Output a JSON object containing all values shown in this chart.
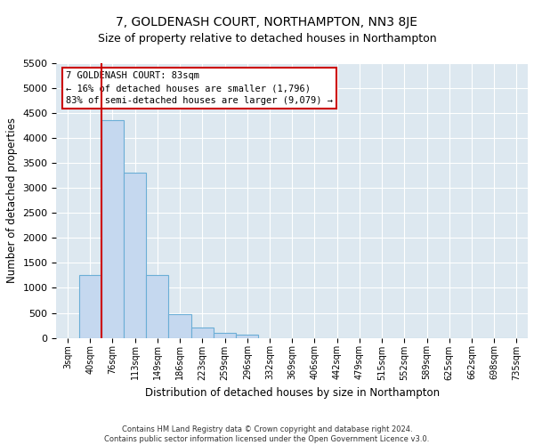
{
  "title": "7, GOLDENASH COURT, NORTHAMPTON, NN3 8JE",
  "subtitle": "Size of property relative to detached houses in Northampton",
  "xlabel": "Distribution of detached houses by size in Northampton",
  "ylabel": "Number of detached properties",
  "footer_line1": "Contains HM Land Registry data © Crown copyright and database right 2024.",
  "footer_line2": "Contains public sector information licensed under the Open Government Licence v3.0.",
  "categories": [
    "3sqm",
    "40sqm",
    "76sqm",
    "113sqm",
    "149sqm",
    "186sqm",
    "223sqm",
    "259sqm",
    "296sqm",
    "332sqm",
    "369sqm",
    "406sqm",
    "442sqm",
    "479sqm",
    "515sqm",
    "552sqm",
    "589sqm",
    "625sqm",
    "662sqm",
    "698sqm",
    "735sqm"
  ],
  "values": [
    0,
    1250,
    4350,
    3300,
    1250,
    480,
    200,
    100,
    70,
    0,
    0,
    0,
    0,
    0,
    0,
    0,
    0,
    0,
    0,
    0,
    0
  ],
  "bar_color": "#c5d8ef",
  "bar_edge_color": "#6baed6",
  "vline_color": "#cc0000",
  "ylim": [
    0,
    5500
  ],
  "yticks": [
    0,
    500,
    1000,
    1500,
    2000,
    2500,
    3000,
    3500,
    4000,
    4500,
    5000,
    5500
  ],
  "annotation_text": "7 GOLDENASH COURT: 83sqm\n← 16% of detached houses are smaller (1,796)\n83% of semi-detached houses are larger (9,079) →",
  "annotation_box_color": "#ffffff",
  "annotation_box_edge_color": "#cc0000",
  "property_bin_index": 2,
  "bg_color": "#dde8f0",
  "title_fontsize": 10,
  "subtitle_fontsize": 9
}
